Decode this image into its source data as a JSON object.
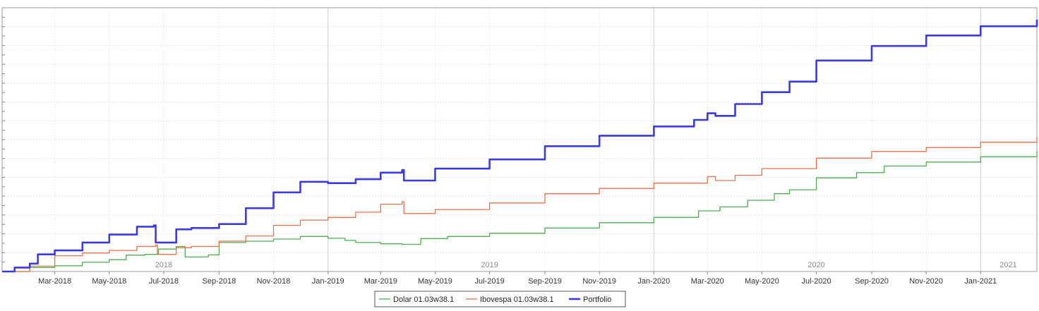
{
  "chart_data": {
    "type": "line",
    "title": "",
    "xlabel": "",
    "ylabel": "",
    "x_range": [
      "2018-01-01",
      "2021-03-05"
    ],
    "y_range": [
      0,
      100
    ],
    "grid": true,
    "legend_position": "bottom-center",
    "month_ticks": [
      {
        "date": "2018-03-01",
        "label": "Mar-2018"
      },
      {
        "date": "2018-05-01",
        "label": "May-2018"
      },
      {
        "date": "2018-07-01",
        "label": "Jul-2018"
      },
      {
        "date": "2018-09-01",
        "label": "Sep-2018"
      },
      {
        "date": "2018-11-01",
        "label": "Nov-2018"
      },
      {
        "date": "2019-01-01",
        "label": "Jan-2019"
      },
      {
        "date": "2019-03-01",
        "label": "Mar-2019"
      },
      {
        "date": "2019-05-01",
        "label": "May-2019"
      },
      {
        "date": "2019-07-01",
        "label": "Jul-2019"
      },
      {
        "date": "2019-09-01",
        "label": "Sep-2019"
      },
      {
        "date": "2019-11-01",
        "label": "Nov-2019"
      },
      {
        "date": "2020-01-01",
        "label": "Jan-2020"
      },
      {
        "date": "2020-03-01",
        "label": "Mar-2020"
      },
      {
        "date": "2020-05-01",
        "label": "May-2020"
      },
      {
        "date": "2020-07-01",
        "label": "Jul-2020"
      },
      {
        "date": "2020-09-01",
        "label": "Sep-2020"
      },
      {
        "date": "2020-11-01",
        "label": "Nov-2020"
      },
      {
        "date": "2021-01-01",
        "label": "Jan-2021"
      }
    ],
    "year_labels": [
      {
        "date": "2018-07-01",
        "label": "2018"
      },
      {
        "date": "2019-07-01",
        "label": "2019"
      },
      {
        "date": "2020-07-01",
        "label": "2020"
      },
      {
        "date": "2021-02-01",
        "label": "2021"
      }
    ],
    "series": [
      {
        "name": "Dolar 01.03w38.1",
        "color": "#4caf50",
        "width": 1.3,
        "points": [
          [
            "2018-01-01",
            0
          ],
          [
            "2018-02-01",
            1.5
          ],
          [
            "2018-03-01",
            2.2
          ],
          [
            "2018-04-01",
            3.5
          ],
          [
            "2018-05-01",
            4.5
          ],
          [
            "2018-05-20",
            6.2
          ],
          [
            "2018-06-10",
            6.5
          ],
          [
            "2018-06-25",
            8.5
          ],
          [
            "2018-07-15",
            9.5
          ],
          [
            "2018-07-25",
            5.5
          ],
          [
            "2018-08-20",
            6.3
          ],
          [
            "2018-09-01",
            11.0
          ],
          [
            "2018-10-01",
            11.5
          ],
          [
            "2018-11-01",
            12.3
          ],
          [
            "2018-12-01",
            13.3
          ],
          [
            "2019-01-01",
            12.6
          ],
          [
            "2019-01-20",
            11.8
          ],
          [
            "2019-02-01",
            11.0
          ],
          [
            "2019-03-01",
            10.5
          ],
          [
            "2019-03-25",
            10.3
          ],
          [
            "2019-04-15",
            12.5
          ],
          [
            "2019-05-15",
            13.3
          ],
          [
            "2019-07-01",
            14.5
          ],
          [
            "2019-09-01",
            16.5
          ],
          [
            "2019-11-01",
            18.5
          ],
          [
            "2020-01-01",
            20.5
          ],
          [
            "2020-02-20",
            23.0
          ],
          [
            "2020-03-15",
            24.5
          ],
          [
            "2020-04-15",
            27.0
          ],
          [
            "2020-05-15",
            29.5
          ],
          [
            "2020-06-01",
            31.0
          ],
          [
            "2020-07-01",
            35.5
          ],
          [
            "2020-08-15",
            37.5
          ],
          [
            "2020-09-15",
            40.0
          ],
          [
            "2020-11-01",
            41.5
          ],
          [
            "2021-01-01",
            43.5
          ],
          [
            "2021-03-05",
            45.5
          ]
        ]
      },
      {
        "name": "Ibovespa 01.03w38.1",
        "color": "#e8704a",
        "width": 1.3,
        "points": [
          [
            "2018-01-01",
            0
          ],
          [
            "2018-02-01",
            2.0
          ],
          [
            "2018-03-01",
            6.0
          ],
          [
            "2018-04-01",
            7.0
          ],
          [
            "2018-05-01",
            8.0
          ],
          [
            "2018-06-01",
            9.5
          ],
          [
            "2018-06-22",
            10.0
          ],
          [
            "2018-06-24",
            6.5
          ],
          [
            "2018-07-15",
            9.0
          ],
          [
            "2018-08-01",
            9.5
          ],
          [
            "2018-09-01",
            11.5
          ],
          [
            "2018-10-01",
            13.5
          ],
          [
            "2018-11-01",
            17.5
          ],
          [
            "2018-12-01",
            19.5
          ],
          [
            "2019-01-01",
            20.5
          ],
          [
            "2019-02-01",
            22.5
          ],
          [
            "2019-03-01",
            25.5
          ],
          [
            "2019-03-25",
            26.5
          ],
          [
            "2019-03-27",
            22.0
          ],
          [
            "2019-05-01",
            23.5
          ],
          [
            "2019-07-01",
            26.0
          ],
          [
            "2019-09-01",
            29.5
          ],
          [
            "2019-11-01",
            31.5
          ],
          [
            "2020-01-01",
            33.5
          ],
          [
            "2020-03-01",
            36.0
          ],
          [
            "2020-03-10",
            34.5
          ],
          [
            "2020-04-01",
            36.5
          ],
          [
            "2020-05-01",
            39.0
          ],
          [
            "2020-07-01",
            43.0
          ],
          [
            "2020-09-01",
            45.5
          ],
          [
            "2020-11-01",
            47.0
          ],
          [
            "2021-01-01",
            49.0
          ],
          [
            "2021-03-05",
            51.0
          ]
        ]
      },
      {
        "name": "Portfolio",
        "color": "#3a3ae6",
        "width": 2.6,
        "points": [
          [
            "2018-01-01",
            0
          ],
          [
            "2018-01-15",
            1.5
          ],
          [
            "2018-02-01",
            3.0
          ],
          [
            "2018-02-10",
            6.5
          ],
          [
            "2018-03-01",
            8.0
          ],
          [
            "2018-04-01",
            11.0
          ],
          [
            "2018-05-01",
            14.0
          ],
          [
            "2018-06-01",
            17.0
          ],
          [
            "2018-06-20",
            17.5
          ],
          [
            "2018-06-22",
            11.0
          ],
          [
            "2018-07-15",
            16.0
          ],
          [
            "2018-08-01",
            16.5
          ],
          [
            "2018-09-01",
            18.0
          ],
          [
            "2018-10-01",
            24.0
          ],
          [
            "2018-11-01",
            30.0
          ],
          [
            "2018-12-01",
            34.0
          ],
          [
            "2019-01-01",
            33.5
          ],
          [
            "2019-02-01",
            35.0
          ],
          [
            "2019-03-01",
            37.5
          ],
          [
            "2019-03-25",
            38.5
          ],
          [
            "2019-03-27",
            34.5
          ],
          [
            "2019-05-01",
            39.0
          ],
          [
            "2019-07-01",
            42.5
          ],
          [
            "2019-09-01",
            47.5
          ],
          [
            "2019-11-01",
            51.5
          ],
          [
            "2020-01-01",
            55.0
          ],
          [
            "2020-02-15",
            57.5
          ],
          [
            "2020-03-01",
            60.0
          ],
          [
            "2020-03-10",
            59.0
          ],
          [
            "2020-04-01",
            63.5
          ],
          [
            "2020-05-01",
            68.0
          ],
          [
            "2020-06-01",
            72.0
          ],
          [
            "2020-07-01",
            80.0
          ],
          [
            "2020-09-01",
            85.5
          ],
          [
            "2020-11-01",
            89.5
          ],
          [
            "2021-01-01",
            93.0
          ],
          [
            "2021-03-05",
            95.5
          ]
        ]
      }
    ]
  }
}
